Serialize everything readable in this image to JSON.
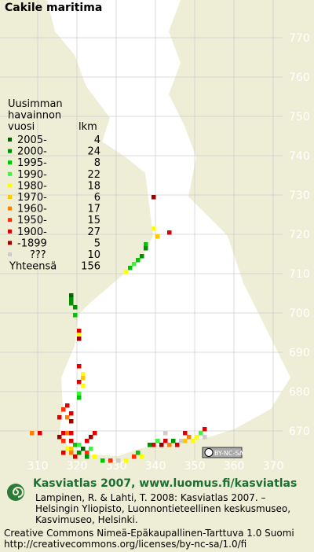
{
  "title": "Cakile maritima",
  "legend": {
    "header": [
      "Uusimman",
      "havainnon",
      "vuosi"
    ],
    "count_header": "lkm",
    "rows": [
      {
        "label": "2005-",
        "count": 4,
        "color": "#006400"
      },
      {
        "label": "2000-",
        "count": 24,
        "color": "#009000"
      },
      {
        "label": "1995-",
        "count": 8,
        "color": "#00c800"
      },
      {
        "label": "1990-",
        "count": 22,
        "color": "#44ee44"
      },
      {
        "label": "1980-",
        "count": 18,
        "color": "#ffff00"
      },
      {
        "label": "1970-",
        "count": 6,
        "color": "#ffc800"
      },
      {
        "label": "1960-",
        "count": 17,
        "color": "#ff8000"
      },
      {
        "label": "1950-",
        "count": 15,
        "color": "#ff3000"
      },
      {
        "label": "1900-",
        "count": 27,
        "color": "#dd0000"
      },
      {
        "label": "-1899",
        "count": 5,
        "color": "#990000"
      },
      {
        "label": "???",
        "count": 10,
        "color": "#cccccc"
      }
    ],
    "total_label": "Yhteensä",
    "total": 156
  },
  "grid": {
    "x_ticks": [
      310,
      320,
      330,
      340,
      350,
      360,
      370
    ],
    "y_ticks": [
      770,
      760,
      750,
      740,
      730,
      720,
      710,
      700,
      690,
      680,
      670
    ]
  },
  "observations": [
    {
      "x": 339,
      "y": 729,
      "period": 9
    },
    {
      "x": 339,
      "y": 721,
      "period": 4
    },
    {
      "x": 340,
      "y": 719,
      "period": 5
    },
    {
      "x": 343,
      "y": 720,
      "period": 8
    },
    {
      "x": 337,
      "y": 717,
      "period": 2
    },
    {
      "x": 337,
      "y": 716,
      "period": 1
    },
    {
      "x": 336,
      "y": 714,
      "period": 1
    },
    {
      "x": 335,
      "y": 713,
      "period": 2
    },
    {
      "x": 334,
      "y": 712,
      "period": 3
    },
    {
      "x": 333,
      "y": 711,
      "period": 2
    },
    {
      "x": 332,
      "y": 710,
      "period": 4
    },
    {
      "x": 318,
      "y": 704,
      "period": 0
    },
    {
      "x": 318,
      "y": 703,
      "period": 1
    },
    {
      "x": 318,
      "y": 702,
      "period": 1
    },
    {
      "x": 319,
      "y": 701,
      "period": 1
    },
    {
      "x": 319,
      "y": 699,
      "period": 2
    },
    {
      "x": 320,
      "y": 695,
      "period": 8
    },
    {
      "x": 320,
      "y": 694,
      "period": 4
    },
    {
      "x": 320,
      "y": 693,
      "period": 9
    },
    {
      "x": 320,
      "y": 686,
      "period": 8
    },
    {
      "x": 321,
      "y": 684,
      "period": 4
    },
    {
      "x": 321,
      "y": 683,
      "period": 5
    },
    {
      "x": 320,
      "y": 682,
      "period": 8
    },
    {
      "x": 321,
      "y": 681,
      "period": 4
    },
    {
      "x": 320,
      "y": 679,
      "period": 3
    },
    {
      "x": 320,
      "y": 678,
      "period": 2
    },
    {
      "x": 317,
      "y": 676,
      "period": 8
    },
    {
      "x": 316,
      "y": 675,
      "period": 7
    },
    {
      "x": 315,
      "y": 673,
      "period": 8
    },
    {
      "x": 317,
      "y": 673,
      "period": 6
    },
    {
      "x": 318,
      "y": 672,
      "period": 9
    },
    {
      "x": 318,
      "y": 674,
      "period": 8
    },
    {
      "x": 316,
      "y": 669,
      "period": 8
    },
    {
      "x": 317,
      "y": 669,
      "period": 6
    },
    {
      "x": 318,
      "y": 669,
      "period": 8
    },
    {
      "x": 315,
      "y": 668,
      "period": 9
    },
    {
      "x": 316,
      "y": 667,
      "period": 7
    },
    {
      "x": 318,
      "y": 667,
      "period": 8
    },
    {
      "x": 319,
      "y": 666,
      "period": 2
    },
    {
      "x": 320,
      "y": 666,
      "period": 3
    },
    {
      "x": 317,
      "y": 665,
      "period": 4
    },
    {
      "x": 318,
      "y": 665,
      "period": 5
    },
    {
      "x": 316,
      "y": 664,
      "period": 8
    },
    {
      "x": 318,
      "y": 664,
      "period": 6
    },
    {
      "x": 320,
      "y": 664,
      "period": 1
    },
    {
      "x": 319,
      "y": 663,
      "period": 8
    },
    {
      "x": 321,
      "y": 665,
      "period": 0
    },
    {
      "x": 322,
      "y": 664,
      "period": 7
    },
    {
      "x": 323,
      "y": 665,
      "period": 3
    },
    {
      "x": 322,
      "y": 667,
      "period": 8
    },
    {
      "x": 323,
      "y": 668,
      "period": 9
    },
    {
      "x": 324,
      "y": 669,
      "period": 8
    },
    {
      "x": 322,
      "y": 663,
      "period": 1
    },
    {
      "x": 324,
      "y": 663,
      "period": 4
    },
    {
      "x": 326,
      "y": 662,
      "period": 2
    },
    {
      "x": 328,
      "y": 662,
      "period": 7
    },
    {
      "x": 330,
      "y": 662,
      "period": 10
    },
    {
      "x": 332,
      "y": 662,
      "period": 4
    },
    {
      "x": 334,
      "y": 663,
      "period": 7
    },
    {
      "x": 335,
      "y": 664,
      "period": 2
    },
    {
      "x": 336,
      "y": 663,
      "period": 4
    },
    {
      "x": 338,
      "y": 666,
      "period": 1
    },
    {
      "x": 339,
      "y": 666,
      "period": 8
    },
    {
      "x": 340,
      "y": 667,
      "period": 3
    },
    {
      "x": 341,
      "y": 666,
      "period": 9
    },
    {
      "x": 342,
      "y": 667,
      "period": 8
    },
    {
      "x": 343,
      "y": 666,
      "period": 6
    },
    {
      "x": 344,
      "y": 667,
      "period": 1
    },
    {
      "x": 345,
      "y": 666,
      "period": 8
    },
    {
      "x": 346,
      "y": 667,
      "period": 10
    },
    {
      "x": 347,
      "y": 667,
      "period": 5
    },
    {
      "x": 348,
      "y": 668,
      "period": 6
    },
    {
      "x": 349,
      "y": 667,
      "period": 4
    },
    {
      "x": 350,
      "y": 668,
      "period": 4
    },
    {
      "x": 351,
      "y": 669,
      "period": 3
    },
    {
      "x": 352,
      "y": 668,
      "period": 10
    },
    {
      "x": 352,
      "y": 670,
      "period": 8
    },
    {
      "x": 347,
      "y": 669,
      "period": 8
    },
    {
      "x": 342,
      "y": 669,
      "period": 10
    },
    {
      "x": 308,
      "y": 669,
      "period": 6
    },
    {
      "x": 310,
      "y": 669,
      "period": 8
    }
  ],
  "cc_badge": "BY-NC-SA",
  "footer": {
    "heading": "Kasviatlas 2007, www.luomus.fi/kasviatlas",
    "lines": [
      "Lampinen, R. & Lahti, T. 2008: Kasviatlas 2007. –",
      "Helsingin Yliopisto, Luonnontieteellinen keskusmuseo,",
      "Kasvimuseo, Helsinki."
    ],
    "license": [
      "Creative Commons Nimeä-Epäkaupallinen-Tarttuva 1.0 Suomi",
      "http://creativecommons.org/licenses/by-nc-sa/1.0/fi"
    ]
  }
}
